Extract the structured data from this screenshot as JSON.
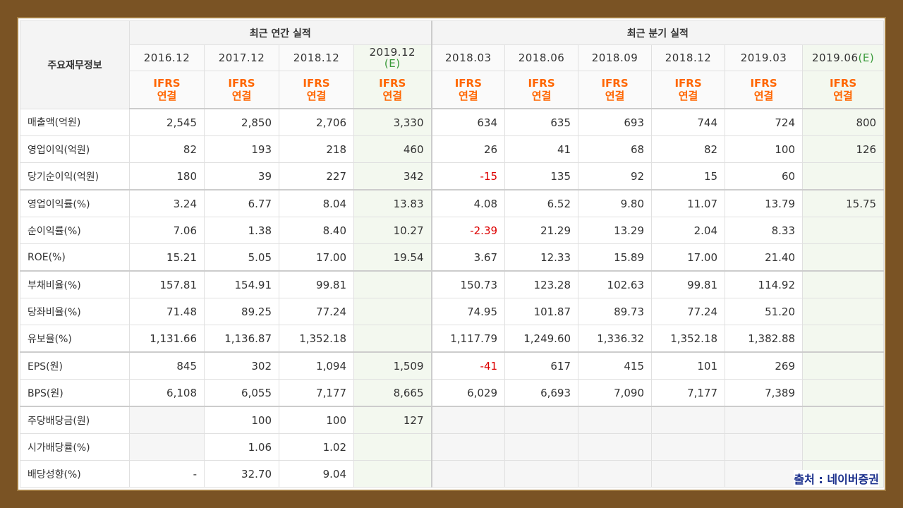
{
  "table": {
    "corner": "주요재무정보",
    "annual_group": "최근 연간 실적",
    "quarter_group": "최근 분기 실적",
    "periods": [
      {
        "label": "2016.12",
        "est": ""
      },
      {
        "label": "2017.12",
        "est": ""
      },
      {
        "label": "2018.12",
        "est": ""
      },
      {
        "label": "2019.12",
        "est": "(E)"
      },
      {
        "label": "2018.03",
        "est": ""
      },
      {
        "label": "2018.06",
        "est": ""
      },
      {
        "label": "2018.09",
        "est": ""
      },
      {
        "label": "2018.12",
        "est": ""
      },
      {
        "label": "2019.03",
        "est": ""
      },
      {
        "label": "2019.06",
        "est": "(E)"
      }
    ],
    "ifrs_line1": "IFRS",
    "ifrs_line2": "연결",
    "rows": [
      {
        "label": "매출액(억원)",
        "values": [
          "2,545",
          "2,850",
          "2,706",
          "3,330",
          "634",
          "635",
          "693",
          "744",
          "724",
          "800"
        ]
      },
      {
        "label": "영업이익(억원)",
        "values": [
          "82",
          "193",
          "218",
          "460",
          "26",
          "41",
          "68",
          "82",
          "100",
          "126"
        ]
      },
      {
        "label": "당기순이익(억원)",
        "values": [
          "180",
          "39",
          "227",
          "342",
          "-15",
          "135",
          "92",
          "15",
          "60",
          ""
        ]
      },
      {
        "label": "영업이익률(%)",
        "values": [
          "3.24",
          "6.77",
          "8.04",
          "13.83",
          "4.08",
          "6.52",
          "9.80",
          "11.07",
          "13.79",
          "15.75"
        ]
      },
      {
        "label": "순이익률(%)",
        "values": [
          "7.06",
          "1.38",
          "8.40",
          "10.27",
          "-2.39",
          "21.29",
          "13.29",
          "2.04",
          "8.33",
          ""
        ]
      },
      {
        "label": "ROE(%)",
        "values": [
          "15.21",
          "5.05",
          "17.00",
          "19.54",
          "3.67",
          "12.33",
          "15.89",
          "17.00",
          "21.40",
          ""
        ]
      },
      {
        "label": "부채비율(%)",
        "values": [
          "157.81",
          "154.91",
          "99.81",
          "",
          "150.73",
          "123.28",
          "102.63",
          "99.81",
          "114.92",
          ""
        ]
      },
      {
        "label": "당좌비율(%)",
        "values": [
          "71.48",
          "89.25",
          "77.24",
          "",
          "74.95",
          "101.87",
          "89.73",
          "77.24",
          "51.20",
          ""
        ]
      },
      {
        "label": "유보율(%)",
        "values": [
          "1,131.66",
          "1,136.87",
          "1,352.18",
          "",
          "1,117.79",
          "1,249.60",
          "1,336.32",
          "1,352.18",
          "1,382.88",
          ""
        ]
      },
      {
        "label": "EPS(원)",
        "values": [
          "845",
          "302",
          "1,094",
          "1,509",
          "-41",
          "617",
          "415",
          "101",
          "269",
          ""
        ]
      },
      {
        "label": "BPS(원)",
        "values": [
          "6,108",
          "6,055",
          "7,177",
          "8,665",
          "6,029",
          "6,693",
          "7,090",
          "7,177",
          "7,389",
          ""
        ]
      },
      {
        "label": "주당배당금(원)",
        "values": [
          "",
          "100",
          "100",
          "127",
          "",
          "",
          "",
          "",
          "",
          ""
        ]
      },
      {
        "label": "시가배당률(%)",
        "values": [
          "",
          "1.06",
          "1.02",
          "",
          "",
          "",
          "",
          "",
          "",
          ""
        ]
      },
      {
        "label": "배당성향(%)",
        "values": [
          "-",
          "32.70",
          "9.04",
          "",
          "",
          "",
          "",
          "",
          "",
          ""
        ]
      }
    ],
    "group_breaks": [
      3,
      6,
      9,
      11
    ]
  },
  "source_label": "출처 : 네이버증권",
  "colors": {
    "background_frame": "#7a5324",
    "ifrs_text": "#ff6600",
    "estimate_text": "#3a9a3a",
    "negative_value": "#dd0000",
    "source_text": "#1a2f8c"
  }
}
